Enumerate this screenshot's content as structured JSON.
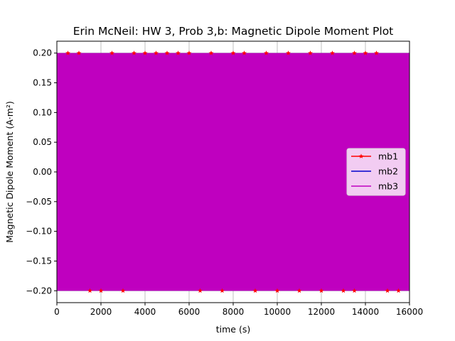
{
  "chart_data": {
    "type": "line",
    "title": "Erin McNeil: HW 3, Prob 3,b: Magnetic Dipole Moment Plot",
    "xlabel": "time (s)",
    "ylabel": "Magnetic Dipole Moment (A·m²)",
    "xlim": [
      0,
      16000
    ],
    "ylim": [
      -0.22,
      0.22
    ],
    "xticks": [
      0,
      2000,
      4000,
      6000,
      8000,
      10000,
      12000,
      14000,
      16000
    ],
    "yticks": [
      -0.2,
      -0.15,
      -0.1,
      -0.05,
      0.0,
      0.05,
      0.1,
      0.15,
      0.2
    ],
    "xtick_labels": [
      "0",
      "2000",
      "4000",
      "6000",
      "8000",
      "10000",
      "12000",
      "14000",
      "16000"
    ],
    "ytick_labels": [
      "−0.20",
      "−0.15",
      "−0.10",
      "−0.05",
      "0.00",
      "0.05",
      "0.10",
      "0.15",
      "0.20"
    ],
    "grid": true,
    "legend_position": "center-right",
    "series": [
      {
        "name": "mb1",
        "color": "#ff0000",
        "marker": "star",
        "amplitude": 0.2,
        "top_markers_x": [
          500,
          1000,
          2500,
          3500,
          4000,
          4500,
          5000,
          5500,
          6000,
          7000,
          8000,
          8500,
          9500,
          10500,
          11500,
          12500,
          13500,
          14000,
          14500
        ],
        "bottom_markers_x": [
          1500,
          2000,
          3000,
          6500,
          7500,
          9000,
          10000,
          11000,
          12000,
          13000,
          13500,
          15000,
          15500
        ]
      },
      {
        "name": "mb2",
        "color": "#0000cc",
        "marker": "none",
        "amplitude": 0.2
      },
      {
        "name": "mb3",
        "color": "#bf00bf",
        "marker": "none",
        "amplitude": 0.2
      }
    ]
  }
}
